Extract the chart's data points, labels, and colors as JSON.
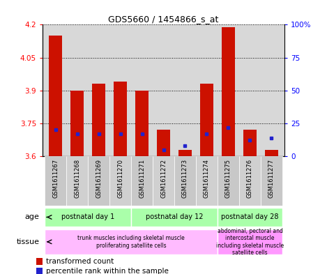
{
  "title": "GDS5660 / 1454866_s_at",
  "samples": [
    "GSM1611267",
    "GSM1611268",
    "GSM1611269",
    "GSM1611270",
    "GSM1611271",
    "GSM1611272",
    "GSM1611273",
    "GSM1611274",
    "GSM1611275",
    "GSM1611276",
    "GSM1611277"
  ],
  "red_values": [
    4.15,
    3.9,
    3.93,
    3.94,
    3.9,
    3.72,
    3.63,
    3.93,
    4.19,
    3.72,
    3.63
  ],
  "blue_values_pct": [
    20,
    17,
    17,
    17,
    17,
    5,
    8,
    17,
    22,
    12,
    14
  ],
  "ymin": 3.6,
  "ymax": 4.2,
  "y2min": 0,
  "y2max": 100,
  "yticks": [
    3.6,
    3.75,
    3.9,
    4.05,
    4.2
  ],
  "y2ticks": [
    0,
    25,
    50,
    75,
    100
  ],
  "y2ticklabels": [
    "0",
    "25",
    "50",
    "75",
    "100%"
  ],
  "bar_color": "#cc1100",
  "blue_color": "#2222cc",
  "age_groups": [
    {
      "label": "postnatal day 1",
      "start": 0,
      "end": 3
    },
    {
      "label": "postnatal day 12",
      "start": 4,
      "end": 7
    },
    {
      "label": "postnatal day 28",
      "start": 8,
      "end": 10
    }
  ],
  "tissue_groups": [
    {
      "label": "trunk muscles including skeletal muscle\nproliferating satellite cells",
      "start": 0,
      "end": 7
    },
    {
      "label": "abdominal, pectoral and\nintercostal muscle\nincluding skeletal muscle\nsatellite cells",
      "start": 8,
      "end": 10
    }
  ],
  "age_bg": "#aaffaa",
  "tissue1_bg": "#ffbbff",
  "tissue2_bg": "#ff99ff",
  "legend_red": "transformed count",
  "legend_blue": "percentile rank within the sample",
  "bar_width": 0.6,
  "plot_bg": "#d8d8d8"
}
